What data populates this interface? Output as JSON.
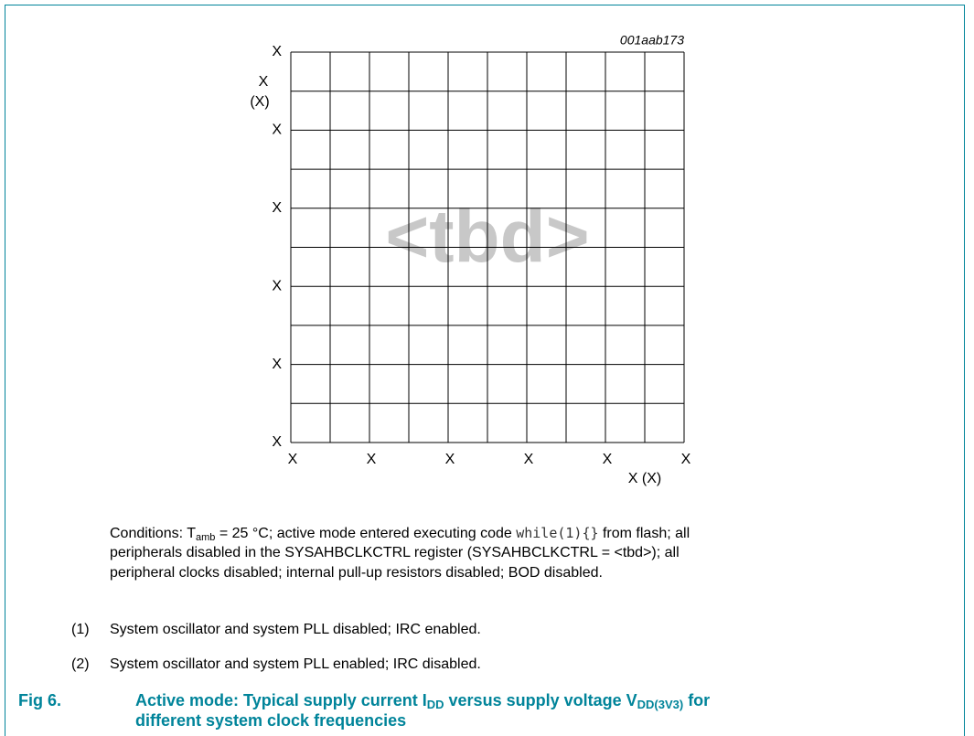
{
  "figure": {
    "drawing_id": "001aab173",
    "placeholder": "<tbd>",
    "y_axis": {
      "label": "X",
      "unit": "(X)",
      "ticks": [
        "X",
        "X",
        "X",
        "X",
        "X",
        "X"
      ]
    },
    "x_axis": {
      "label": "X (X)",
      "ticks": [
        "X",
        "X",
        "X",
        "X",
        "X",
        "X"
      ]
    },
    "conditions": [
      [
        "Conditions: T",
        "amb",
        " = 25 °C; active mode entered executing code ",
        "while(1){}",
        " from flash; all"
      ],
      [
        "peripherals disabled in the SYSAHBCLKCTRL register (SYSAHBCLKCTRL = <tbd>); all"
      ],
      [
        "peripheral clocks disabled; internal pull-up resistors disabled; BOD disabled."
      ]
    ],
    "notes": [
      {
        "marker": "(1)",
        "text": "System oscillator and system PLL disabled; IRC enabled."
      },
      {
        "marker": "(2)",
        "text": "System oscillator and system PLL enabled; IRC disabled."
      }
    ],
    "caption": {
      "number": "Fig 6.",
      "lines": [
        [
          "Active mode: Typical supply current I",
          "DD",
          " versus supply voltage V",
          "DD(3V3)",
          " for"
        ],
        [
          "different system clock frequencies"
        ]
      ]
    }
  }
}
